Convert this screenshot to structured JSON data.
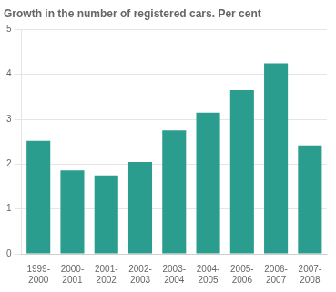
{
  "chart_data": {
    "type": "bar",
    "title": "Growth in the number of registered cars. Per cent",
    "categories": [
      "1999-\n2000",
      "2000-\n2001",
      "2001-\n2002",
      "2002-\n2003",
      "2003-\n2004",
      "2004-\n2005",
      "2005-\n2006",
      "2006-\n2007",
      "2007-\n2008"
    ],
    "values": [
      2.52,
      1.86,
      1.75,
      2.05,
      2.75,
      3.15,
      3.65,
      4.25,
      2.42
    ],
    "color": "#2a9d8f",
    "ylim": [
      0,
      5
    ],
    "yticks": [
      0,
      1,
      2,
      3,
      4,
      5
    ],
    "grid": true
  }
}
